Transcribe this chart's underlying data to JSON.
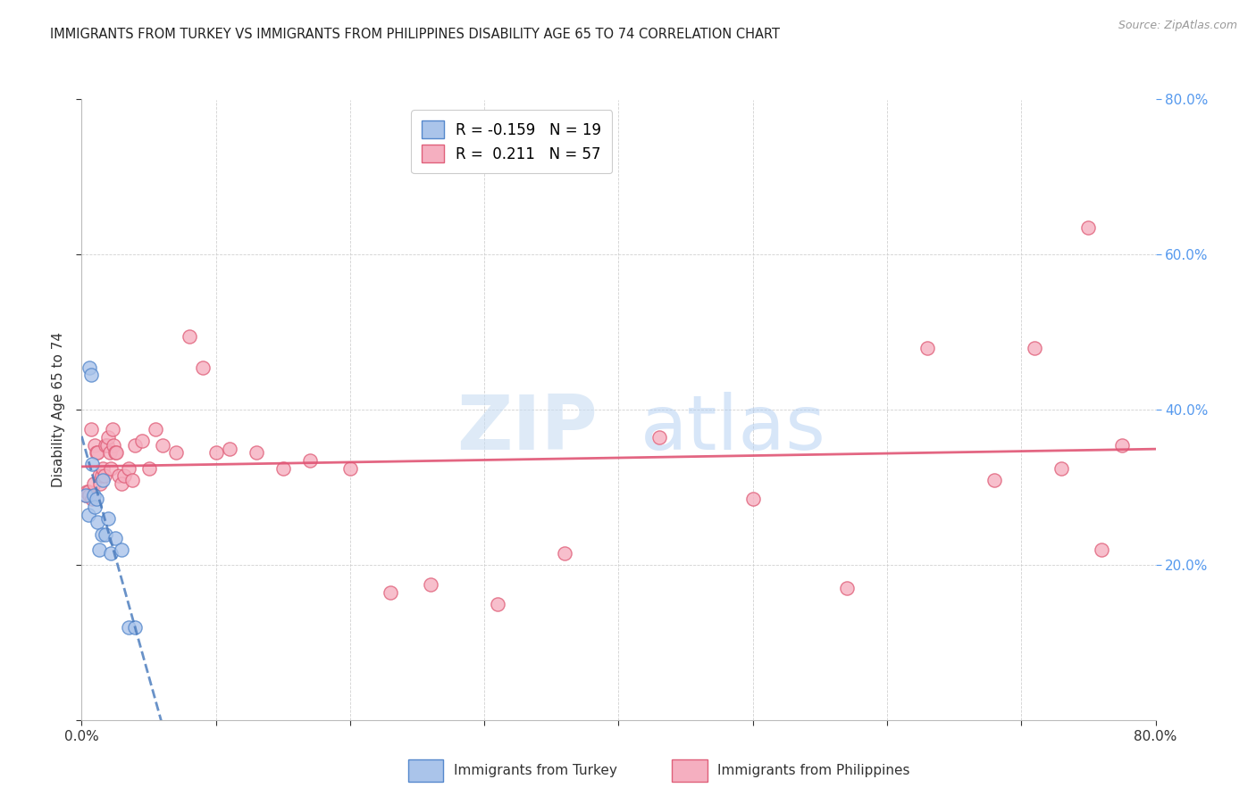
{
  "title": "IMMIGRANTS FROM TURKEY VS IMMIGRANTS FROM PHILIPPINES DISABILITY AGE 65 TO 74 CORRELATION CHART",
  "source": "Source: ZipAtlas.com",
  "ylabel": "Disability Age 65 to 74",
  "turkey_R": -0.159,
  "turkey_N": 19,
  "philippines_R": 0.211,
  "philippines_N": 57,
  "xlim": [
    0.0,
    0.8
  ],
  "ylim": [
    0.0,
    0.8
  ],
  "turkey_color": "#aac4ea",
  "philippines_color": "#f5afc0",
  "turkey_edge_color": "#5588cc",
  "philippines_edge_color": "#e0607a",
  "turkey_line_color": "#4477bb",
  "philippines_line_color": "#e05575",
  "grid_color": "#cccccc",
  "right_tick_color": "#5599ee",
  "watermark_color": "#ddeeff",
  "turkey_x": [
    0.003,
    0.005,
    0.006,
    0.007,
    0.008,
    0.009,
    0.01,
    0.011,
    0.012,
    0.013,
    0.015,
    0.016,
    0.018,
    0.02,
    0.022,
    0.025,
    0.03,
    0.035,
    0.04
  ],
  "turkey_y": [
    0.29,
    0.265,
    0.455,
    0.445,
    0.33,
    0.29,
    0.275,
    0.285,
    0.255,
    0.22,
    0.24,
    0.31,
    0.24,
    0.26,
    0.215,
    0.235,
    0.22,
    0.12,
    0.12
  ],
  "philippines_x": [
    0.003,
    0.004,
    0.005,
    0.006,
    0.007,
    0.008,
    0.009,
    0.01,
    0.011,
    0.012,
    0.013,
    0.014,
    0.015,
    0.016,
    0.017,
    0.018,
    0.019,
    0.02,
    0.021,
    0.022,
    0.023,
    0.024,
    0.025,
    0.026,
    0.028,
    0.03,
    0.032,
    0.035,
    0.038,
    0.04,
    0.045,
    0.05,
    0.055,
    0.06,
    0.07,
    0.08,
    0.09,
    0.1,
    0.11,
    0.13,
    0.15,
    0.17,
    0.2,
    0.23,
    0.26,
    0.31,
    0.36,
    0.43,
    0.5,
    0.57,
    0.63,
    0.68,
    0.71,
    0.73,
    0.75,
    0.76,
    0.775
  ],
  "philippines_y": [
    0.29,
    0.295,
    0.295,
    0.29,
    0.375,
    0.285,
    0.305,
    0.355,
    0.345,
    0.345,
    0.315,
    0.305,
    0.315,
    0.325,
    0.315,
    0.355,
    0.355,
    0.365,
    0.345,
    0.325,
    0.375,
    0.355,
    0.345,
    0.345,
    0.315,
    0.305,
    0.315,
    0.325,
    0.31,
    0.355,
    0.36,
    0.325,
    0.375,
    0.355,
    0.345,
    0.495,
    0.455,
    0.345,
    0.35,
    0.345,
    0.325,
    0.335,
    0.325,
    0.165,
    0.175,
    0.15,
    0.215,
    0.365,
    0.285,
    0.17,
    0.48,
    0.31,
    0.48,
    0.325,
    0.635,
    0.22,
    0.355
  ]
}
